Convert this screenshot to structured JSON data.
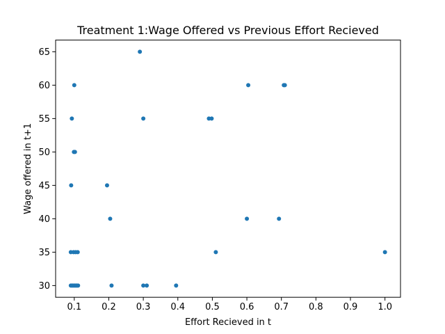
{
  "chart_data": {
    "type": "scatter",
    "title": "Treatment 1:Wage Offered vs Previous Effort Recieved",
    "xlabel": "Effort Recieved in t",
    "ylabel": "Wage offered in t+1",
    "xlim": [
      0.046,
      1.045
    ],
    "ylim": [
      28.25,
      66.75
    ],
    "xticks": [
      0.1,
      0.2,
      0.3,
      0.4,
      0.5,
      0.6,
      0.7,
      0.8,
      0.9,
      1.0
    ],
    "xtick_labels": [
      "0.1",
      "0.2",
      "0.3",
      "0.4",
      "0.5",
      "0.6",
      "0.7",
      "0.8",
      "0.9",
      "1.0"
    ],
    "yticks": [
      30,
      35,
      40,
      45,
      50,
      55,
      60,
      65
    ],
    "ytick_labels": [
      "30",
      "35",
      "40",
      "45",
      "50",
      "55",
      "60",
      "65"
    ],
    "grid": false,
    "marker_color": "#1f77b4",
    "points": [
      {
        "x": 0.29,
        "y": 65
      },
      {
        "x": 0.1,
        "y": 60
      },
      {
        "x": 0.604,
        "y": 60
      },
      {
        "x": 0.707,
        "y": 60
      },
      {
        "x": 0.71,
        "y": 60
      },
      {
        "x": 0.093,
        "y": 55
      },
      {
        "x": 0.3,
        "y": 55
      },
      {
        "x": 0.49,
        "y": 55
      },
      {
        "x": 0.498,
        "y": 55
      },
      {
        "x": 0.099,
        "y": 50
      },
      {
        "x": 0.102,
        "y": 50
      },
      {
        "x": 0.091,
        "y": 45
      },
      {
        "x": 0.195,
        "y": 45
      },
      {
        "x": 0.204,
        "y": 40
      },
      {
        "x": 0.6,
        "y": 40
      },
      {
        "x": 0.693,
        "y": 40
      },
      {
        "x": 0.09,
        "y": 35
      },
      {
        "x": 0.098,
        "y": 35
      },
      {
        "x": 0.104,
        "y": 35
      },
      {
        "x": 0.11,
        "y": 35
      },
      {
        "x": 0.51,
        "y": 35
      },
      {
        "x": 1.0,
        "y": 35
      },
      {
        "x": 0.09,
        "y": 30
      },
      {
        "x": 0.093,
        "y": 30
      },
      {
        "x": 0.096,
        "y": 30
      },
      {
        "x": 0.099,
        "y": 30
      },
      {
        "x": 0.102,
        "y": 30
      },
      {
        "x": 0.105,
        "y": 30
      },
      {
        "x": 0.108,
        "y": 30
      },
      {
        "x": 0.111,
        "y": 30
      },
      {
        "x": 0.208,
        "y": 30
      },
      {
        "x": 0.3,
        "y": 30
      },
      {
        "x": 0.31,
        "y": 30
      },
      {
        "x": 0.395,
        "y": 30
      }
    ]
  }
}
